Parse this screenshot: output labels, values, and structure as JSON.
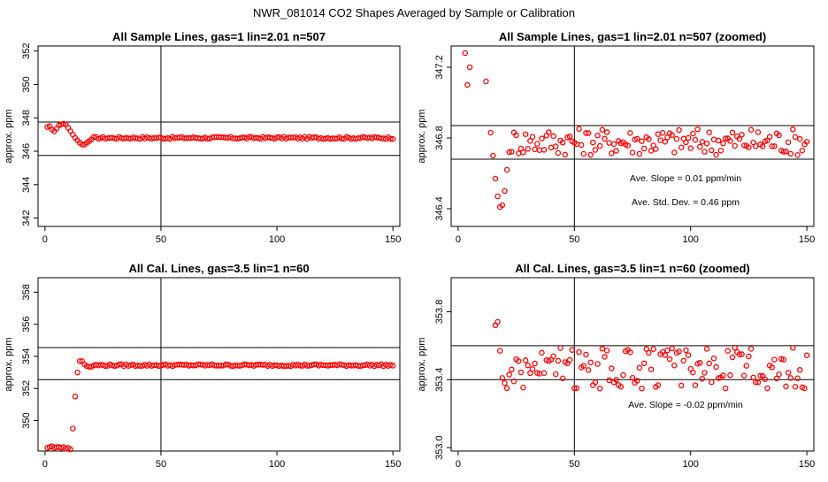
{
  "figure": {
    "suptitle": "NWR_081014  CO2 Shapes Averaged by Sample or Calibration"
  },
  "chart_data": [
    {
      "type": "scatter",
      "title": "All Sample Lines, gas=1 lin=2.01 n=507",
      "xlabel": "",
      "ylabel": "approx. ppm",
      "xlim": [
        -3,
        153
      ],
      "ylim": [
        341.5,
        352.3
      ],
      "xticks": [
        0,
        50,
        100,
        150
      ],
      "yticks": [
        342,
        344,
        346,
        348,
        350,
        352
      ],
      "hlines": [
        347.75,
        345.75
      ],
      "vlines": [
        50
      ],
      "annotations": [],
      "series": [
        {
          "color": "#ff0000",
          "marker": "open-circle",
          "plateau": 346.8,
          "x": [
            1,
            2,
            3,
            4,
            5,
            6,
            7,
            8,
            9,
            10,
            11,
            12,
            13,
            14,
            15,
            16,
            17,
            18,
            19,
            20
          ],
          "y": [
            347.45,
            347.5,
            347.3,
            347.2,
            347.35,
            347.55,
            347.6,
            347.65,
            347.6,
            347.4,
            347.2,
            347.0,
            346.8,
            346.65,
            346.5,
            346.4,
            346.4,
            346.5,
            346.6,
            346.7
          ]
        }
      ]
    },
    {
      "type": "scatter",
      "title": "All Sample Lines, gas=1 lin=2.01 n=507 (zoomed)",
      "xlabel": "",
      "ylabel": "approx. ppm",
      "xlim": [
        -3,
        153
      ],
      "ylim": [
        346.3,
        347.32
      ],
      "xticks": [
        0,
        50,
        100,
        150
      ],
      "yticks": [
        346.4,
        346.8,
        347.2
      ],
      "hlines": [
        346.87,
        346.68
      ],
      "vlines": [
        50
      ],
      "annotations": [
        "Ave. Slope =  0.01  ppm/min",
        "Ave. Std. Dev. =  0.46  ppm"
      ],
      "series": [
        {
          "color": "#ff0000",
          "marker": "open-circle",
          "plateau": 346.78,
          "x": [
            3,
            4,
            5,
            12,
            14,
            15,
            16,
            17,
            18,
            19,
            20,
            21,
            22
          ],
          "y": [
            347.28,
            347.1,
            347.2,
            347.12,
            346.83,
            346.7,
            346.57,
            346.47,
            346.41,
            346.42,
            346.5,
            346.62,
            346.72
          ]
        }
      ]
    },
    {
      "type": "scatter",
      "title": "All Cal. Lines, gas=3.5 lin=1 n=60",
      "xlabel": "",
      "ylabel": "approx. ppm",
      "xlim": [
        -3,
        153
      ],
      "ylim": [
        348.1,
        358.9
      ],
      "xticks": [
        0,
        50,
        100,
        150
      ],
      "yticks": [
        350,
        352,
        354,
        356,
        358
      ],
      "hlines": [
        354.55,
        352.55
      ],
      "vlines": [
        50
      ],
      "annotations": [],
      "series": [
        {
          "color": "#ff0000",
          "marker": "open-circle",
          "plateau": 353.45,
          "x": [
            1,
            2,
            3,
            4,
            5,
            6,
            7,
            8,
            9,
            10,
            11,
            12,
            13,
            14,
            15,
            16,
            17,
            18,
            19,
            20
          ],
          "y": [
            348.3,
            348.35,
            348.4,
            348.3,
            348.35,
            348.35,
            348.3,
            348.35,
            348.25,
            348.3,
            348.2,
            349.5,
            351.5,
            353.0,
            353.7,
            353.7,
            353.5,
            353.4,
            353.35,
            353.35
          ]
        }
      ]
    },
    {
      "type": "scatter",
      "title": "All Cal. Lines, gas=3.5 lin=1 n=60 (zoomed)",
      "xlabel": "",
      "ylabel": "approx. ppm",
      "xlim": [
        -3,
        153
      ],
      "ylim": [
        352.98,
        354.0
      ],
      "xticks": [
        0,
        50,
        100,
        150
      ],
      "yticks": [
        353.0,
        353.4,
        353.8
      ],
      "hlines": [
        353.6,
        353.4
      ],
      "vlines": [
        50
      ],
      "annotations": [
        "Ave. Slope = -0.02  ppm/min"
      ],
      "series": [
        {
          "color": "#ff0000",
          "marker": "open-circle",
          "plateau": 353.47,
          "x": [
            16,
            17,
            18,
            19,
            20,
            21,
            22,
            23,
            24,
            25
          ],
          "y": [
            353.72,
            353.74,
            353.57,
            353.41,
            353.38,
            353.35,
            353.43,
            353.46,
            353.39,
            353.52
          ]
        }
      ]
    }
  ]
}
